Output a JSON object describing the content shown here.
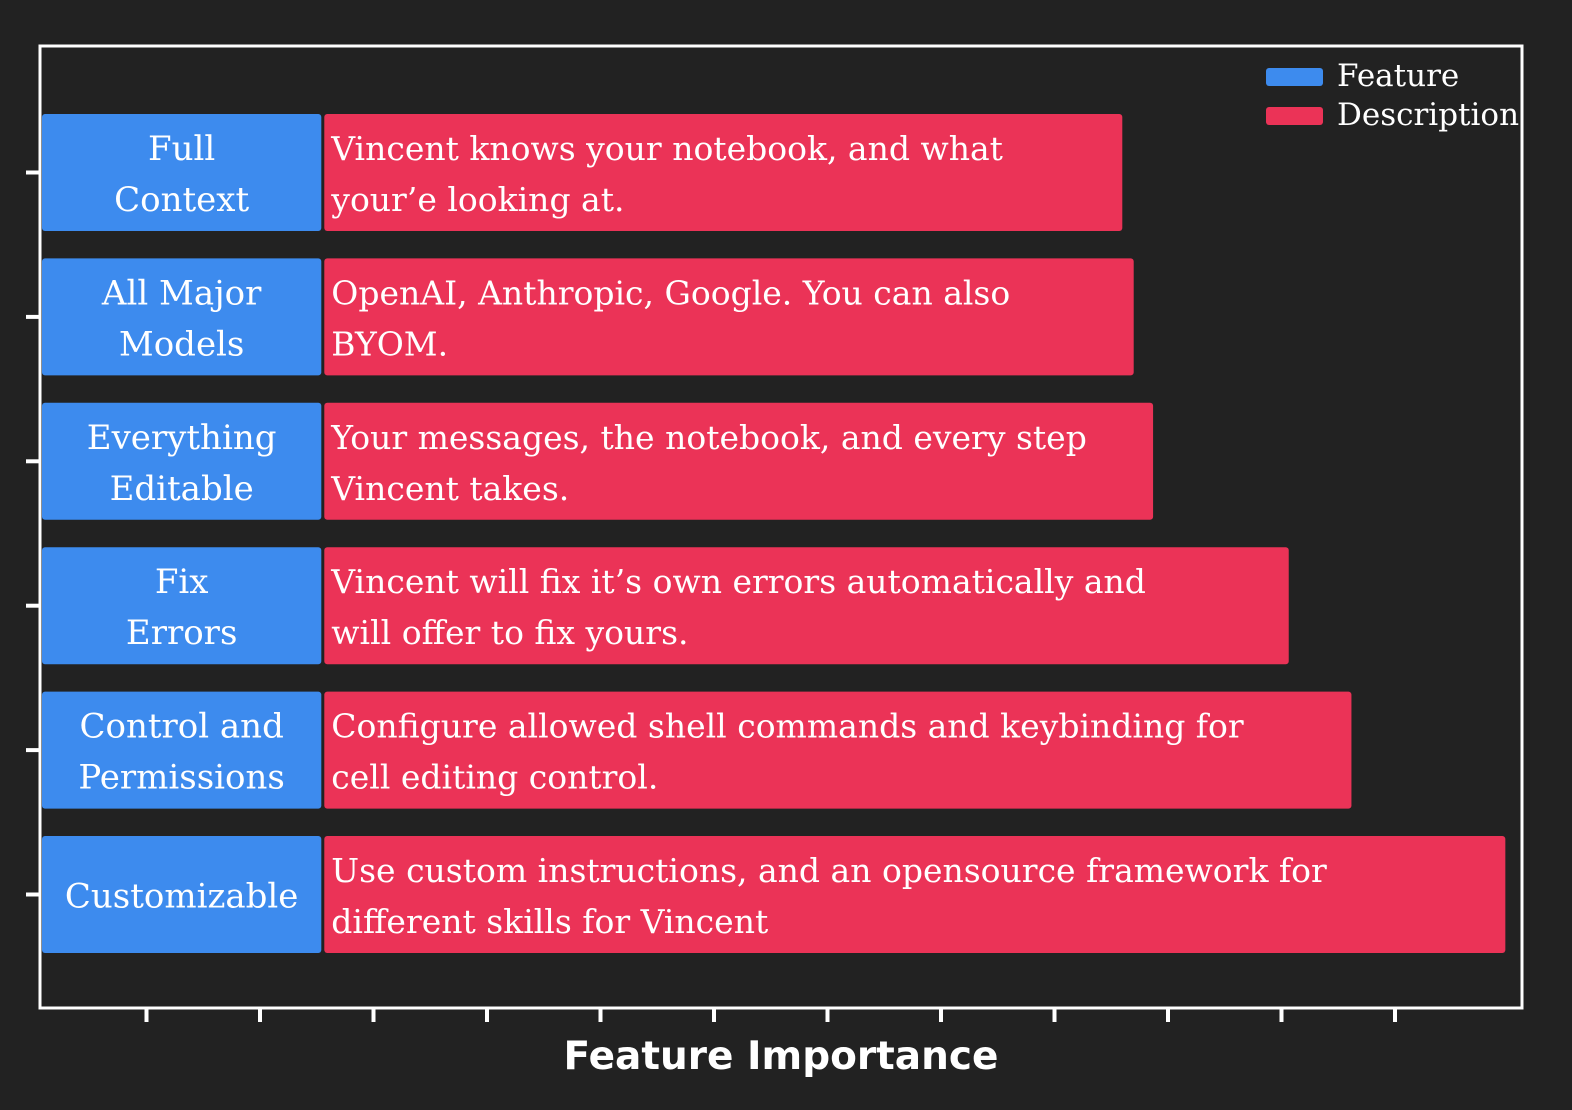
{
  "colors": {
    "background": "#222222",
    "feature": "#3d8bee",
    "description": "#eb3357",
    "text": "#ffffff",
    "frame": "#ffffff"
  },
  "chart_data": {
    "type": "bar",
    "orientation": "horizontal",
    "stacked": true,
    "title": "",
    "xlabel": "Feature Importance",
    "ylabel": "",
    "xtick_count": 12,
    "grid": false,
    "legend": {
      "placement": "top-right",
      "entries": [
        "Feature",
        "Description"
      ]
    },
    "categories": [
      {
        "feature": [
          "Full",
          "Context"
        ],
        "description": [
          "Vincent knows your notebook, and what",
          "your’e looking at."
        ],
        "feature_value": 2.45,
        "description_value": 7.0
      },
      {
        "feature": [
          "All Major",
          "Models"
        ],
        "description": [
          "OpenAI, Anthropic, Google. You can also",
          "BYOM."
        ],
        "feature_value": 2.45,
        "description_value": 7.1
      },
      {
        "feature": [
          "Everything",
          "Editable"
        ],
        "description": [
          "Your messages, the notebook, and every step",
          "Vincent takes."
        ],
        "feature_value": 2.45,
        "description_value": 7.27
      },
      {
        "feature": [
          "Fix",
          "Errors"
        ],
        "description": [
          "Vincent will fix it’s own errors automatically and",
          "will offer to fix yours."
        ],
        "feature_value": 2.45,
        "description_value": 8.46
      },
      {
        "feature": [
          "Control and",
          "Permissions"
        ],
        "description": [
          "Configure allowed shell commands and keybinding for",
          "cell editing control."
        ],
        "feature_value": 2.45,
        "description_value": 9.01
      },
      {
        "feature": [
          "Customizable"
        ],
        "description": [
          "Use custom instructions, and an opensource framework for",
          "different skills for Vincent"
        ],
        "feature_value": 2.45,
        "description_value": 10.36
      }
    ]
  }
}
